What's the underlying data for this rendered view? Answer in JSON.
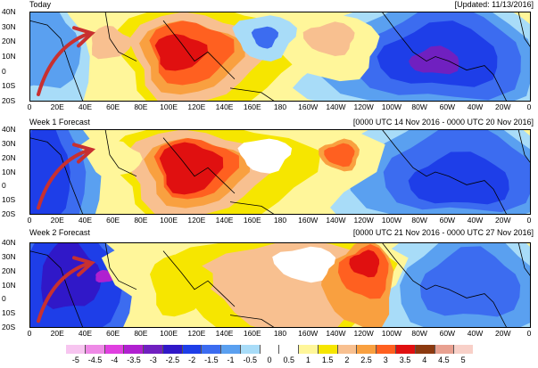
{
  "panels": [
    {
      "title_left": "Today",
      "title_right": "[Updated: 11/13/2016]"
    },
    {
      "title_left": "Week 1 Forecast",
      "title_right": "[0000 UTC 14 Nov 2016 - 0000 UTC 20 Nov 2016]"
    },
    {
      "title_left": "Week 2 Forecast",
      "title_right": "[0000 UTC 21 Nov 2016 - 0000 UTC 27 Nov 2016]"
    }
  ],
  "lat_ticks": [
    "40N",
    "30N",
    "20N",
    "10N",
    "0",
    "10S",
    "20S"
  ],
  "lon_ticks": [
    "0",
    "20E",
    "40E",
    "60E",
    "80E",
    "100E",
    "120E",
    "140E",
    "160E",
    "180",
    "160W",
    "140W",
    "120W",
    "100W",
    "80W",
    "60W",
    "40W",
    "20W",
    "0"
  ],
  "colorbar": {
    "labels": [
      "-5",
      "-4.5",
      "-4",
      "-3.5",
      "-3",
      "-2.5",
      "-2",
      "-1.5",
      "-1",
      "-0.5",
      "0",
      "0.5",
      "1",
      "1.5",
      "2",
      "2.5",
      "3",
      "3.5",
      "4",
      "4.5",
      "5"
    ],
    "colors": [
      "#f7c5f0",
      "#ee8ae6",
      "#e040e0",
      "#b020d0",
      "#7020c0",
      "#3018c8",
      "#1e3ee8",
      "#3c6cf0",
      "#5aa0f0",
      "#a8dcf8",
      "#ffffff",
      "#ffffff",
      "#fff69a",
      "#f6e600",
      "#f8c090",
      "#f9a040",
      "#ff6020",
      "#e01010",
      "#8c3a10",
      "#e8a090",
      "#f8d0c8"
    ]
  },
  "colors": {
    "arrow": "#c83030",
    "coast": "#000000"
  }
}
